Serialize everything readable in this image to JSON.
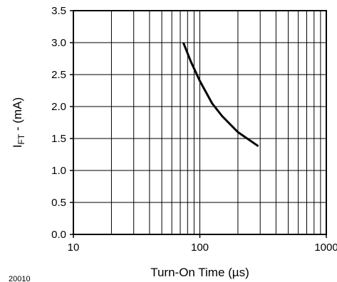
{
  "chart_data": {
    "type": "line",
    "xscale": "log",
    "xlim": [
      10,
      1000
    ],
    "ylim": [
      0.0,
      3.5
    ],
    "grid": true,
    "xlabel": "Turn-On Time (µs)",
    "ylabel_main": "I",
    "ylabel_sub": "FT",
    "ylabel_rest": " - (mA)",
    "figure_code": "20010",
    "x_tick_labels": [
      {
        "value": 10,
        "label": "10"
      },
      {
        "value": 100,
        "label": "100"
      },
      {
        "value": 1000,
        "label": "1000"
      }
    ],
    "y_tick_labels": [
      {
        "value": 0.0,
        "label": "0.0"
      },
      {
        "value": 0.5,
        "label": "0.5"
      },
      {
        "value": 1.0,
        "label": "1.0"
      },
      {
        "value": 1.5,
        "label": "1.5"
      },
      {
        "value": 2.0,
        "label": "2.0"
      },
      {
        "value": 2.5,
        "label": "2.5"
      },
      {
        "value": 3.0,
        "label": "3.0"
      },
      {
        "value": 3.5,
        "label": "3.5"
      }
    ],
    "series": [
      {
        "x": [
          74,
          85,
          100,
          125,
          150,
          200,
          290
        ],
        "y": [
          3.0,
          2.7,
          2.4,
          2.05,
          1.85,
          1.6,
          1.38
        ]
      }
    ],
    "line_color": "#000000"
  }
}
